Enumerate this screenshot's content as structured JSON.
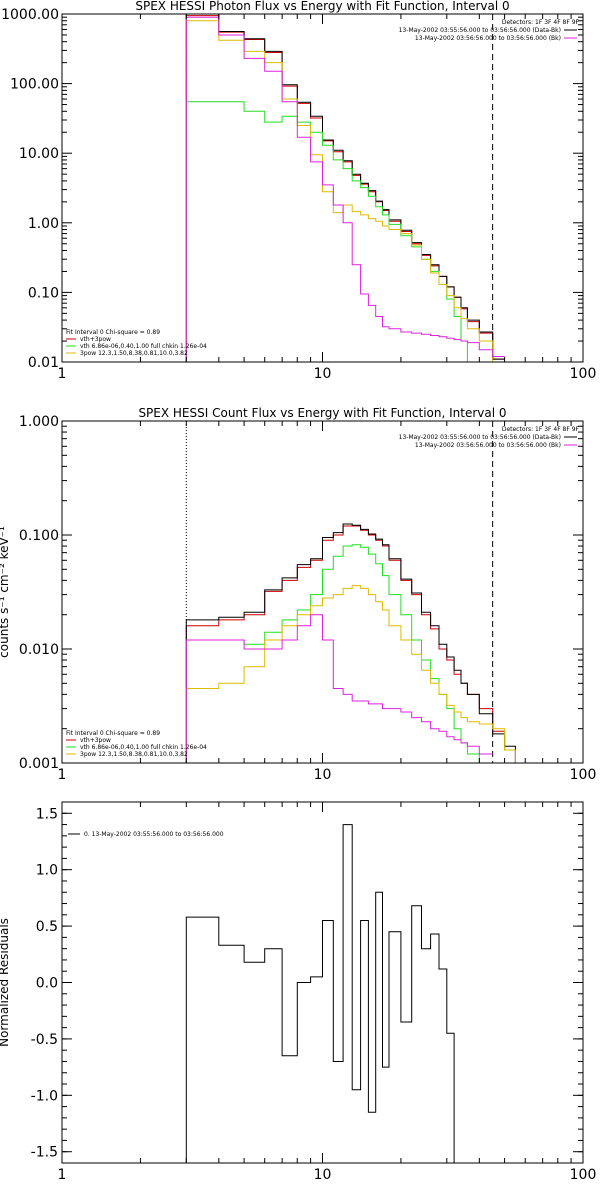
{
  "colors": {
    "fit_total": "#cc0000",
    "vth": "#22dd22",
    "bpow": "#ddbb00",
    "data": "#000000",
    "background": "#dd22dd"
  },
  "chart_data": [
    {
      "type": "line",
      "title": "SPEX HESSI Photon Flux vs Energy with Fit Function, Interval 0",
      "xscale": "log",
      "yscale": "log",
      "xlim": [
        1,
        100
      ],
      "ylim": [
        0.01,
        1000
      ],
      "xtick_labels": [
        "1",
        "10",
        "100"
      ],
      "ytick_labels": [
        "0.01",
        "0.10",
        "1.00",
        "10.00",
        "100.00",
        "1000.00"
      ],
      "detector_info": "Detectors: 1F 3F 4F 8F 9F",
      "legend_entries": [
        "13-May-2002 03:55:56.000 to 03:56:56.000 (Data-Bk)",
        "13-May-2002 03:56:56.000 to 03:56:56.000 (Bk)"
      ],
      "fit_text": [
        "Fit Interval 0   Chi-square = 0.89",
        "vth+3pow",
        "vth 6.86e-06,0.40,1.00   full chkin 1.26e-04",
        "3pow  12.3,1.50,8.38,0.81,10.0,3.82"
      ],
      "reference_lines": {
        "dotted_x": 3.0,
        "dashed_x": 45.0
      },
      "edges": [
        3,
        4,
        5,
        6,
        7,
        8,
        9,
        10,
        11,
        12,
        13,
        14,
        15,
        16,
        17,
        18,
        20,
        22,
        24,
        26,
        28,
        30,
        32,
        34,
        36,
        40,
        45,
        50
      ],
      "series": [
        {
          "key": "fit_total",
          "values": [
            950,
            550,
            430,
            280,
            92,
            52,
            32,
            15,
            10.5,
            7.5,
            4.8,
            3.6,
            2.8,
            2.0,
            1.5,
            1.05,
            0.75,
            0.5,
            0.34,
            0.24,
            0.17,
            0.12,
            0.085,
            0.058,
            0.038,
            0.026,
            0.011
          ]
        },
        {
          "key": "data",
          "values": [
            1000,
            560,
            440,
            290,
            96,
            54,
            34,
            15.5,
            11,
            7.8,
            5.0,
            3.7,
            2.9,
            2.05,
            1.55,
            1.1,
            0.78,
            0.52,
            0.35,
            0.25,
            0.17,
            0.12,
            0.085,
            0.06,
            0.04,
            0.027,
            0.011
          ]
        },
        {
          "key": "vth",
          "values": [
            55,
            55,
            40,
            28,
            34,
            28,
            20,
            13,
            8.0,
            6.0,
            4.0,
            3.2,
            2.4,
            1.7,
            1.3,
            0.95,
            0.65,
            0.45,
            0.3,
            0.2,
            0.13,
            0.08,
            0.045,
            0.02,
            0.01
          ]
        },
        {
          "key": "bpow",
          "values": [
            800,
            420,
            290,
            200,
            60,
            25,
            9.5,
            2.8,
            1.4,
            1.8,
            1.45,
            1.3,
            1.15,
            1.05,
            0.9,
            0.8,
            0.7,
            0.48,
            0.3,
            0.19,
            0.13,
            0.09,
            0.06,
            0.042,
            0.03,
            0.02,
            0.01
          ]
        },
        {
          "key": "background",
          "values": [
            900,
            500,
            230,
            150,
            55,
            17,
            7.5,
            3.5,
            1.8,
            1.0,
            0.25,
            0.095,
            0.065,
            0.045,
            0.032,
            0.03,
            0.027,
            0.026,
            0.025,
            0.024,
            0.023,
            0.022,
            0.021,
            0.02,
            0.019,
            0.015,
            0.012
          ]
        }
      ]
    },
    {
      "type": "line",
      "title": "SPEX HESSI Count Flux vs Energy with Fit Function, Interval 0",
      "ylabel": "counts s⁻¹ cm⁻² keV⁻¹",
      "xscale": "log",
      "yscale": "log",
      "xlim": [
        1,
        100
      ],
      "ylim": [
        0.001,
        1
      ],
      "xtick_labels": [
        "1",
        "10",
        "100"
      ],
      "ytick_labels": [
        "0.001",
        "0.010",
        "0.100",
        "1.000"
      ],
      "detector_info": "Detectors: 1F 3F 4F 8F 9F",
      "legend_entries": [
        "13-May-2002 03:55:56.000 to 03:56:56.000 (Data-Bk)",
        "13-May-2002 03:56:56.000 to 03:56:56.000 (Bk)"
      ],
      "fit_text": [
        "Fit Interval 0   Chi-square = 0.89",
        "vth+3pow",
        "vth 6.86e-06,0.40,1.00   full chkin 1.26e-04",
        "3pow  12.3,1.50,8.38,0.81,10.0,3.82"
      ],
      "reference_lines": {
        "dotted_x": 3.0,
        "dashed_x": 45.0
      },
      "edges": [
        3,
        4,
        5,
        6,
        7,
        8,
        9,
        10,
        11,
        12,
        13,
        14,
        15,
        16,
        17,
        18,
        20,
        22,
        24,
        26,
        28,
        30,
        32,
        34,
        36,
        40,
        45,
        50,
        55,
        60
      ],
      "series": [
        {
          "key": "fit_total",
          "values": [
            0.016,
            0.018,
            0.02,
            0.032,
            0.04,
            0.052,
            0.06,
            0.09,
            0.1,
            0.12,
            0.12,
            0.11,
            0.1,
            0.09,
            0.08,
            0.06,
            0.04,
            0.03,
            0.02,
            0.015,
            0.01,
            0.008,
            0.006,
            0.005,
            0.004,
            0.003,
            0.0019,
            0.0013,
            0.001
          ]
        },
        {
          "key": "data",
          "values": [
            0.018,
            0.019,
            0.021,
            0.033,
            0.042,
            0.055,
            0.062,
            0.095,
            0.105,
            0.125,
            0.122,
            0.112,
            0.102,
            0.092,
            0.082,
            0.062,
            0.041,
            0.031,
            0.021,
            0.016,
            0.011,
            0.0085,
            0.0065,
            0.005,
            0.004,
            0.0027,
            0.0018,
            0.0014,
            0.001
          ]
        },
        {
          "key": "vth",
          "values": [
            0.012,
            0.012,
            0.011,
            0.014,
            0.018,
            0.022,
            0.03,
            0.05,
            0.065,
            0.08,
            0.082,
            0.078,
            0.068,
            0.056,
            0.044,
            0.03,
            0.02,
            0.012,
            0.008,
            0.0055,
            0.004,
            0.003,
            0.002,
            0.0015,
            0.0012,
            0.001
          ]
        },
        {
          "key": "bpow",
          "values": [
            0.0045,
            0.005,
            0.007,
            0.012,
            0.016,
            0.02,
            0.024,
            0.028,
            0.03,
            0.034,
            0.036,
            0.034,
            0.03,
            0.026,
            0.022,
            0.016,
            0.012,
            0.009,
            0.0065,
            0.005,
            0.004,
            0.0032,
            0.0028,
            0.0025,
            0.0023,
            0.0022,
            0.002,
            0.0013,
            0.001
          ]
        },
        {
          "key": "background",
          "values": [
            0.012,
            0.012,
            0.01,
            0.01,
            0.012,
            0.016,
            0.02,
            0.012,
            0.0045,
            0.004,
            0.0035,
            0.0035,
            0.0033,
            0.0033,
            0.003,
            0.003,
            0.0028,
            0.0025,
            0.0023,
            0.002,
            0.0019,
            0.0017,
            0.0016,
            0.0015,
            0.0014,
            0.0012
          ]
        }
      ]
    },
    {
      "type": "line",
      "ylabel": "Normalized Residuals",
      "xscale": "log",
      "yscale": "linear",
      "xlim": [
        1,
        100
      ],
      "ylim": [
        -1.6,
        1.6
      ],
      "xtick_labels": [
        "1",
        "10",
        "100"
      ],
      "ytick_labels": [
        "1.5",
        "1.0",
        "0.5",
        "0.0",
        "-0.5",
        "-1.0",
        "-1.5"
      ],
      "ytick_values": [
        1.5,
        1.0,
        0.5,
        0.0,
        -0.5,
        -1.0,
        -1.5
      ],
      "legend_entries": [
        "0. 13-May-2002 03:55:56.000 to 03:56:56.000"
      ],
      "edges": [
        3,
        4,
        5,
        6,
        7,
        8,
        9,
        10,
        11,
        12,
        13,
        14,
        15,
        16,
        17,
        18,
        20,
        22,
        24,
        26,
        28,
        30,
        32,
        34,
        36,
        40,
        45
      ],
      "series": [
        {
          "key": "data",
          "values": [
            0.58,
            0.33,
            0.18,
            0.3,
            -0.65,
            0.0,
            0.05,
            0.55,
            -0.7,
            1.4,
            -0.95,
            0.55,
            -1.15,
            0.8,
            -0.75,
            0.45,
            -0.35,
            0.68,
            0.3,
            0.43,
            0.12,
            -0.45,
            -1.6
          ]
        }
      ]
    }
  ]
}
